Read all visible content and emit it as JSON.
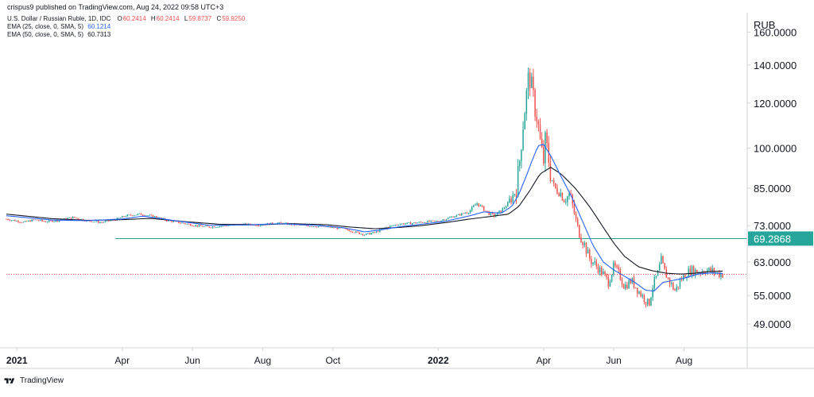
{
  "header": {
    "published_line": "crispus9 published on TradingView.com, Aug 24, 2022 09:58 UTC+3",
    "symbol_line": {
      "symbol": "U.S. Dollar / Russian Ruble, 1D, IDC",
      "o_label": "O",
      "o_value": "60.2414",
      "h_label": "H",
      "h_value": "60.2414",
      "l_label": "L",
      "l_value": "59.8737",
      "c_label": "C",
      "c_value": "59.9250"
    },
    "ema25_line": {
      "label": "EMA (25, close, 0, SMA, 5)",
      "value": "60.1214"
    },
    "ema50_line": {
      "label": "EMA (50, close, 0, SMA, 5)",
      "value": "60.7313"
    }
  },
  "currency_label": "RUB",
  "footer": {
    "brand": "TradingView"
  },
  "colors": {
    "up": "#26a69a",
    "down": "#ef5350",
    "ema25": "#2962ff",
    "ema50": "#131722",
    "hline": "#26a69a",
    "price_line": "#ef5350",
    "background": "#ffffff",
    "axis_text": "#131722",
    "header_value_red": "#ef5350",
    "header_value_blue": "#2962ff"
  },
  "chart_data": {
    "type": "candlestick",
    "title": "U.S. Dollar / Russian Ruble, 1D, IDC",
    "y_scale": "log",
    "ylim": [
      44.5,
      172
    ],
    "y_ticks": [
      {
        "value": 160,
        "label": "160.0000"
      },
      {
        "value": 140,
        "label": "140.0000"
      },
      {
        "value": 120,
        "label": "120.0000"
      },
      {
        "value": 100,
        "label": "100.0000"
      },
      {
        "value": 85,
        "label": "85.0000"
      },
      {
        "value": 73,
        "label": "73.0000"
      },
      {
        "value": 63,
        "label": "63.0000"
      },
      {
        "value": 55,
        "label": "55.0000"
      },
      {
        "value": 49,
        "label": "49.0000"
      }
    ],
    "x_range_months": [
      -0.3,
      20.8
    ],
    "x_ticks": [
      {
        "month": 0,
        "label": "2021",
        "bold": true
      },
      {
        "month": 3,
        "label": "Apr",
        "bold": false
      },
      {
        "month": 5,
        "label": "Jun",
        "bold": false
      },
      {
        "month": 7,
        "label": "Aug",
        "bold": false
      },
      {
        "month": 9,
        "label": "Oct",
        "bold": false
      },
      {
        "month": 12,
        "label": "2022",
        "bold": true
      },
      {
        "month": 15,
        "label": "Apr",
        "bold": false
      },
      {
        "month": 17,
        "label": "Jun",
        "bold": false
      },
      {
        "month": 19,
        "label": "Aug",
        "bold": false
      }
    ],
    "horizontal_line": {
      "value": 69.2868,
      "label": "69.2868",
      "from_month": 2.8
    },
    "last_price": {
      "value": 59.925
    },
    "close_anchors": [
      [
        -0.3,
        75.0
      ],
      [
        0.2,
        74.0
      ],
      [
        0.5,
        74.8
      ],
      [
        0.8,
        74.2
      ],
      [
        1.2,
        74.6
      ],
      [
        1.6,
        75.5
      ],
      [
        2.0,
        74.5
      ],
      [
        2.4,
        74.0
      ],
      [
        2.8,
        74.8
      ],
      [
        3.1,
        76.0
      ],
      [
        3.5,
        76.5
      ],
      [
        3.9,
        75.8
      ],
      [
        4.3,
        74.5
      ],
      [
        4.7,
        73.8
      ],
      [
        5.1,
        73.0
      ],
      [
        5.5,
        72.6
      ],
      [
        5.9,
        73.0
      ],
      [
        6.4,
        73.4
      ],
      [
        6.9,
        73.2
      ],
      [
        7.4,
        73.8
      ],
      [
        7.9,
        73.3
      ],
      [
        8.4,
        72.9
      ],
      [
        8.9,
        72.6
      ],
      [
        9.3,
        72.1
      ],
      [
        9.6,
        71.2
      ],
      [
        9.9,
        70.4
      ],
      [
        10.2,
        71.0
      ],
      [
        10.5,
        72.5
      ],
      [
        10.9,
        73.5
      ],
      [
        11.3,
        73.8
      ],
      [
        11.7,
        74.2
      ],
      [
        12.0,
        74.3
      ],
      [
        12.3,
        75.4
      ],
      [
        12.6,
        76.3
      ],
      [
        12.9,
        77.5
      ],
      [
        13.1,
        80.0
      ],
      [
        13.4,
        77.0
      ],
      [
        13.6,
        76.0
      ],
      [
        13.8,
        77.6
      ],
      [
        14.0,
        80.0
      ],
      [
        14.2,
        84.0
      ],
      [
        14.3,
        92.0
      ],
      [
        14.4,
        108.0
      ],
      [
        14.5,
        122.0
      ],
      [
        14.58,
        135.0
      ],
      [
        14.66,
        128.0
      ],
      [
        14.75,
        118.0
      ],
      [
        14.83,
        112.0
      ],
      [
        14.92,
        100.0
      ],
      [
        15.0,
        95.0
      ],
      [
        15.05,
        103.0
      ],
      [
        15.12,
        98.0
      ],
      [
        15.2,
        90.0
      ],
      [
        15.3,
        85.0
      ],
      [
        15.45,
        84.0
      ],
      [
        15.6,
        81.0
      ],
      [
        15.75,
        83.0
      ],
      [
        15.85,
        78.0
      ],
      [
        15.95,
        73.0
      ],
      [
        16.05,
        70.0
      ],
      [
        16.15,
        68.0
      ],
      [
        16.3,
        64.0
      ],
      [
        16.5,
        62.0
      ],
      [
        16.7,
        60.0
      ],
      [
        16.85,
        58.0
      ],
      [
        17.0,
        62.0
      ],
      [
        17.15,
        60.0
      ],
      [
        17.3,
        57.0
      ],
      [
        17.5,
        58.5
      ],
      [
        17.7,
        56.0
      ],
      [
        17.85,
        54.5
      ],
      [
        18.0,
        53.0
      ],
      [
        18.12,
        57.5
      ],
      [
        18.25,
        60.0
      ],
      [
        18.35,
        63.5
      ],
      [
        18.45,
        60.5
      ],
      [
        18.6,
        58.0
      ],
      [
        18.75,
        56.0
      ],
      [
        18.9,
        58.5
      ],
      [
        19.05,
        60.0
      ],
      [
        19.2,
        61.0
      ],
      [
        19.4,
        60.5
      ],
      [
        19.6,
        61.0
      ],
      [
        19.8,
        60.8
      ],
      [
        20.0,
        60.0
      ],
      [
        20.1,
        59.925
      ]
    ],
    "ema25_anchors": [
      [
        -0.3,
        76.0
      ],
      [
        1.0,
        74.7
      ],
      [
        2.0,
        74.5
      ],
      [
        3.0,
        75.0
      ],
      [
        3.6,
        75.9
      ],
      [
        4.5,
        74.5
      ],
      [
        5.5,
        73.1
      ],
      [
        6.5,
        73.2
      ],
      [
        7.5,
        73.6
      ],
      [
        8.5,
        73.1
      ],
      [
        9.3,
        72.4
      ],
      [
        9.9,
        71.2
      ],
      [
        10.4,
        71.8
      ],
      [
        10.9,
        72.7
      ],
      [
        11.5,
        73.4
      ],
      [
        12.2,
        74.3
      ],
      [
        12.9,
        76.0
      ],
      [
        13.3,
        77.2
      ],
      [
        13.8,
        76.8
      ],
      [
        14.1,
        79.0
      ],
      [
        14.3,
        83.0
      ],
      [
        14.5,
        89.0
      ],
      [
        14.7,
        96.0
      ],
      [
        14.85,
        101.0
      ],
      [
        15.0,
        101.5
      ],
      [
        15.2,
        97.0
      ],
      [
        15.5,
        89.0
      ],
      [
        15.8,
        82.0
      ],
      [
        16.1,
        74.5
      ],
      [
        16.4,
        67.5
      ],
      [
        16.7,
        63.0
      ],
      [
        17.0,
        61.0
      ],
      [
        17.3,
        59.5
      ],
      [
        17.6,
        58.0
      ],
      [
        17.9,
        56.2
      ],
      [
        18.15,
        56.0
      ],
      [
        18.4,
        58.0
      ],
      [
        18.7,
        58.5
      ],
      [
        19.0,
        59.0
      ],
      [
        19.4,
        60.0
      ],
      [
        19.8,
        60.3
      ],
      [
        20.1,
        60.12
      ]
    ],
    "ema50_anchors": [
      [
        -0.3,
        76.5
      ],
      [
        1.0,
        75.1
      ],
      [
        2.0,
        74.6
      ],
      [
        3.0,
        74.8
      ],
      [
        3.8,
        75.2
      ],
      [
        4.8,
        74.2
      ],
      [
        5.8,
        73.4
      ],
      [
        6.8,
        73.3
      ],
      [
        7.8,
        73.6
      ],
      [
        8.8,
        73.3
      ],
      [
        9.5,
        72.6
      ],
      [
        10.2,
        72.1
      ],
      [
        10.9,
        72.5
      ],
      [
        11.5,
        73.0
      ],
      [
        12.2,
        73.9
      ],
      [
        12.9,
        75.0
      ],
      [
        13.5,
        75.8
      ],
      [
        14.0,
        76.5
      ],
      [
        14.3,
        79.0
      ],
      [
        14.6,
        84.0
      ],
      [
        14.9,
        90.0
      ],
      [
        15.2,
        92.5
      ],
      [
        15.5,
        90.0
      ],
      [
        15.9,
        85.0
      ],
      [
        16.3,
        79.0
      ],
      [
        16.7,
        72.5
      ],
      [
        17.0,
        68.0
      ],
      [
        17.3,
        64.5
      ],
      [
        17.7,
        61.8
      ],
      [
        18.1,
        60.8
      ],
      [
        18.5,
        60.2
      ],
      [
        18.9,
        60.0
      ],
      [
        19.3,
        60.2
      ],
      [
        19.7,
        60.6
      ],
      [
        20.1,
        60.73
      ]
    ]
  }
}
